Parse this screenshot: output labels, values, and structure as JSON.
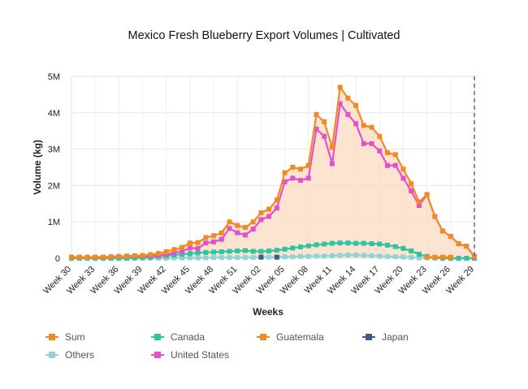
{
  "chart_data": {
    "type": "line",
    "title": "Mexico Fresh Blueberry Export Volumes | Cultivated",
    "xlabel": "Weeks",
    "ylabel": "Volume (kg)",
    "ylim": [
      0,
      5000000
    ],
    "y_ticks": [
      "0",
      "1M",
      "2M",
      "3M",
      "4M",
      "5M"
    ],
    "x_tick_labels": [
      "Week 30",
      "Week 33",
      "Week 36",
      "Week 39",
      "Week 42",
      "Week 45",
      "Week 48",
      "Week 51",
      "Week 02",
      "Week 05",
      "Week 08",
      "Week 11",
      "Week 14",
      "Week 17",
      "Week 20",
      "Week 23",
      "Week 26",
      "Week 29"
    ],
    "x": [
      "Week 30",
      "Week 31",
      "Week 32",
      "Week 33",
      "Week 34",
      "Week 35",
      "Week 36",
      "Week 37",
      "Week 38",
      "Week 39",
      "Week 40",
      "Week 41",
      "Week 42",
      "Week 43",
      "Week 44",
      "Week 45",
      "Week 46",
      "Week 47",
      "Week 48",
      "Week 49",
      "Week 50",
      "Week 51",
      "Week 52",
      "Week 01",
      "Week 02",
      "Week 03",
      "Week 04",
      "Week 05",
      "Week 06",
      "Week 07",
      "Week 08",
      "Week 09",
      "Week 10",
      "Week 11",
      "Week 12",
      "Week 13",
      "Week 14",
      "Week 15",
      "Week 16",
      "Week 17",
      "Week 18",
      "Week 19",
      "Week 20",
      "Week 21",
      "Week 22",
      "Week 23",
      "Week 24",
      "Week 25",
      "Week 26",
      "Week 27",
      "Week 28",
      "Week 29"
    ],
    "series": [
      {
        "name": "Sum",
        "color": "#F08A24",
        "area": true,
        "values": [
          30000,
          30000,
          30000,
          30000,
          30000,
          40000,
          50000,
          60000,
          70000,
          80000,
          100000,
          130000,
          180000,
          240000,
          300000,
          420000,
          430000,
          570000,
          620000,
          700000,
          1000000,
          900000,
          850000,
          1000000,
          1250000,
          1350000,
          1600000,
          2350000,
          2500000,
          2450000,
          2550000,
          3950000,
          3750000,
          3050000,
          4700000,
          4400000,
          4200000,
          3650000,
          3600000,
          3350000,
          2900000,
          2850000,
          2450000,
          2050000,
          1550000,
          1750000,
          1150000,
          750000,
          600000,
          400000,
          330000,
          50000
        ]
      },
      {
        "name": "Canada",
        "color": "#2FC4A0",
        "values": [
          0,
          0,
          0,
          0,
          0,
          0,
          0,
          0,
          10000,
          20000,
          30000,
          50000,
          70000,
          90000,
          110000,
          130000,
          150000,
          160000,
          170000,
          180000,
          190000,
          200000,
          210000,
          190000,
          190000,
          200000,
          220000,
          250000,
          280000,
          310000,
          340000,
          370000,
          390000,
          410000,
          420000,
          420000,
          410000,
          410000,
          400000,
          390000,
          360000,
          320000,
          270000,
          200000,
          110000,
          50000,
          20000,
          0,
          0,
          0,
          0,
          0
        ]
      },
      {
        "name": "Guatemala",
        "color": "#F08A24",
        "values": [
          null,
          null,
          null,
          null,
          null,
          null,
          null,
          null,
          null,
          null,
          null,
          null,
          null,
          null,
          null,
          null,
          null,
          null,
          null,
          null,
          null,
          null,
          null,
          null,
          null,
          null,
          null,
          null,
          null,
          null,
          null,
          null,
          null,
          null,
          null,
          null,
          null,
          null,
          null,
          null,
          null,
          null,
          null,
          null,
          null,
          30000,
          30000,
          30000,
          30000,
          null,
          null,
          null
        ]
      },
      {
        "name": "Japan",
        "color": "#3B5B8C",
        "values": [
          null,
          null,
          null,
          null,
          null,
          null,
          null,
          null,
          null,
          null,
          null,
          null,
          null,
          null,
          null,
          null,
          null,
          null,
          null,
          null,
          null,
          null,
          null,
          null,
          30000,
          null,
          30000,
          null,
          null,
          null,
          null,
          null,
          null,
          null,
          null,
          null,
          null,
          null,
          null,
          null,
          null,
          null,
          null,
          null,
          null,
          null,
          null,
          null,
          null,
          null,
          null,
          null
        ]
      },
      {
        "name": "Others",
        "color": "#8FD3D3",
        "values": [
          0,
          0,
          0,
          0,
          0,
          0,
          0,
          0,
          0,
          0,
          0,
          0,
          0,
          10000,
          10000,
          10000,
          10000,
          10000,
          20000,
          20000,
          20000,
          20000,
          20000,
          20000,
          30000,
          30000,
          30000,
          40000,
          40000,
          50000,
          50000,
          60000,
          60000,
          70000,
          80000,
          90000,
          90000,
          80000,
          70000,
          60000,
          50000,
          40000,
          30000,
          20000,
          10000,
          10000,
          0,
          0,
          0,
          0,
          0,
          0
        ]
      },
      {
        "name": "United States",
        "color": "#E64FCB",
        "values": [
          30000,
          30000,
          30000,
          30000,
          30000,
          40000,
          50000,
          60000,
          60000,
          60000,
          70000,
          80000,
          110000,
          150000,
          190000,
          280000,
          270000,
          420000,
          450000,
          520000,
          820000,
          700000,
          640000,
          800000,
          1060000,
          1150000,
          1380000,
          2100000,
          2200000,
          2140000,
          2200000,
          3550000,
          3350000,
          2600000,
          4250000,
          3950000,
          3700000,
          3150000,
          3150000,
          2950000,
          2550000,
          2550000,
          2200000,
          1850000,
          1450000,
          1750000,
          1150000,
          750000,
          600000,
          400000,
          330000,
          50000
        ]
      }
    ],
    "grid": true,
    "legend_position": "bottom",
    "vertical_marker": "Week 29"
  },
  "legend": [
    {
      "label": "Sum",
      "color": "#F08A24"
    },
    {
      "label": "Canada",
      "color": "#2FC4A0"
    },
    {
      "label": "Guatemala",
      "color": "#F08A24"
    },
    {
      "label": "Japan",
      "color": "#3B5B8C"
    },
    {
      "label": "Others",
      "color": "#8FD3D3"
    },
    {
      "label": "United States",
      "color": "#E64FCB"
    }
  ]
}
